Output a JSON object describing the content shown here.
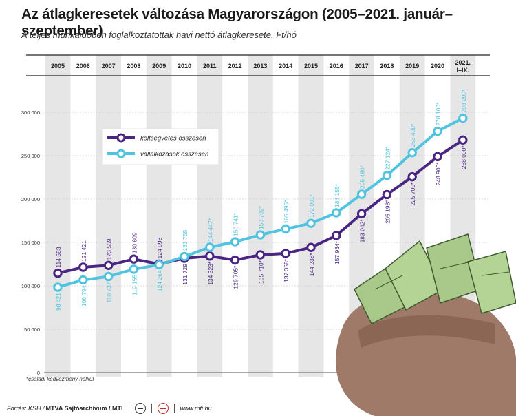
{
  "header": {
    "title": "Az átlagkeresetek változása Magyarországon (2005–2021. január–szeptember)",
    "subtitle": "A teljes munkaidőben foglalkoztatottak havi nettó átlagkeresete, Ft/hó"
  },
  "footnote": "*családi kedvezmény nélkül",
  "footer": {
    "source": "Forrás: KSH /",
    "agency": "MTVA Sajtóarchívum / MTI",
    "website": "www.mti.hu"
  },
  "colors": {
    "public": "#4a2583",
    "business": "#4fc3e0",
    "year_band": "#e6e6e6",
    "grid": "#cccccc"
  },
  "icons": [
    "money-bag-illustration",
    "mtva-logo-icon",
    "mti-logo-icon"
  ],
  "chart_data": {
    "type": "line",
    "title": "Az átlagkeresetek változása Magyarországon (2005–2021. január–szeptember)",
    "subtitle": "A teljes munkaidőben foglalkoztatottak havi nettó átlagkeresete, Ft/hó",
    "x": [
      "2005",
      "2006",
      "2007",
      "2008",
      "2009",
      "2010",
      "2011",
      "2012",
      "2013",
      "2014",
      "2015",
      "2016",
      "2017",
      "2018",
      "2019",
      "2020",
      "2021. I–IX."
    ],
    "x_axis_position": "top",
    "ylim": [
      0,
      300000
    ],
    "yticks": [
      0,
      50000,
      100000,
      150000,
      200000,
      250000,
      300000
    ],
    "ytick_labels": [
      "0",
      "50 000",
      "100 000",
      "150 000",
      "200 000",
      "250 000",
      "300 000"
    ],
    "grid": true,
    "legend_position": "top-left",
    "series": [
      {
        "name": "költségvetés összesen",
        "color": "#4a2583",
        "values": [
          114583,
          121421,
          123559,
          130809,
          124998,
          131729,
          134323,
          129705,
          135710,
          137358,
          144238,
          157934,
          183042,
          205198,
          225700,
          248900,
          268000
        ],
        "labels": [
          "114 583",
          "121 421",
          "123 559",
          "130 809",
          "124 998",
          "131 729",
          "134 323*",
          "129 705*",
          "135 710*",
          "137 358*",
          "144 238*",
          "157 934*",
          "183 042*",
          "205 198*",
          "225 700*",
          "248 900*",
          "268 000*"
        ]
      },
      {
        "name": "vállalkozások összesen",
        "color": "#4fc3e0",
        "values": [
          98421,
          106794,
          110737,
          119155,
          124264,
          133755,
          144447,
          150741,
          158702,
          165495,
          172091,
          184155,
          205480,
          227124,
          253400,
          278100,
          293200
        ],
        "labels": [
          "98 421",
          "106 794",
          "110 737",
          "119 155",
          "124 264",
          "133 755",
          "144 447*",
          "150 741*",
          "158 702*",
          "165 495*",
          "172 091*",
          "184 155*",
          "205 480*",
          "227 124*",
          "253 400*",
          "278 100*",
          "293 200*"
        ]
      }
    ]
  }
}
